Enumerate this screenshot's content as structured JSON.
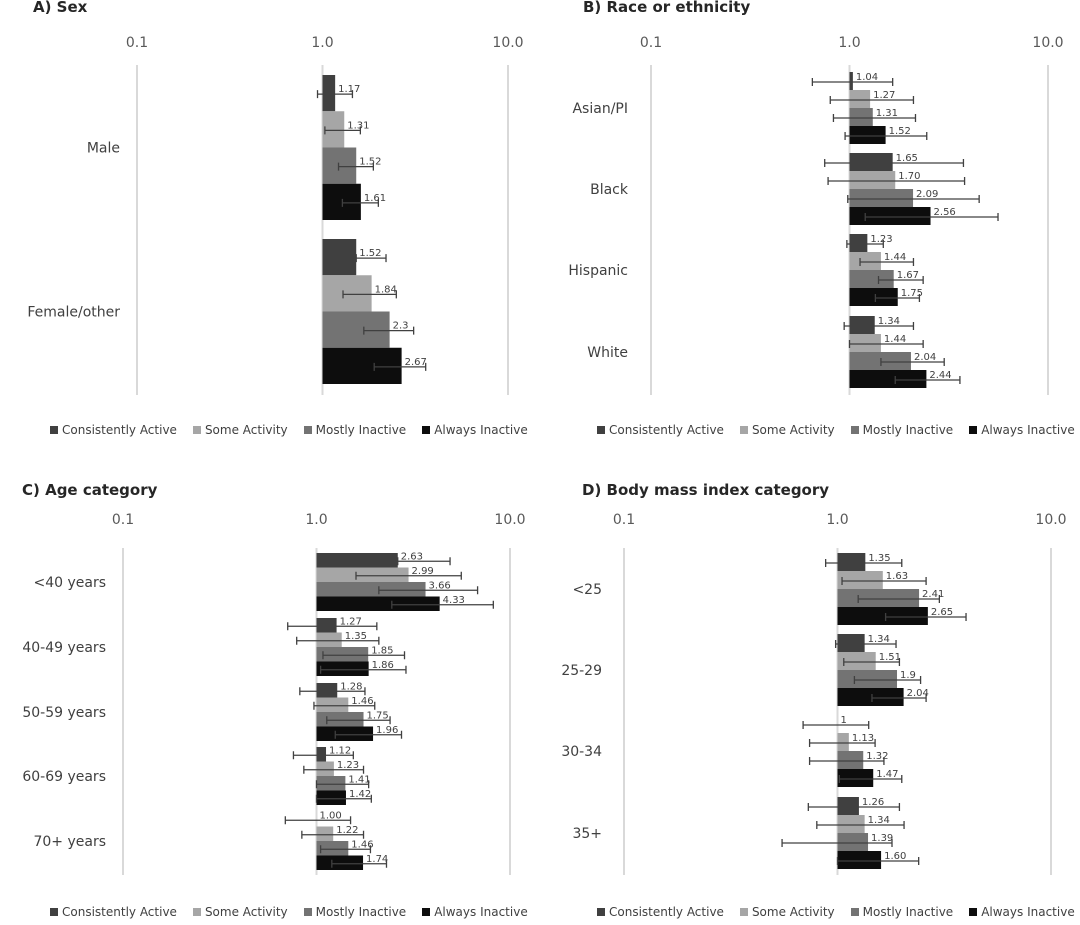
{
  "series_colors": {
    "Consistently Active": "#404040",
    "Some Activity": "#a6a6a6",
    "Mostly Inactive": "#737373",
    "Always Inactive": "#0d0d0d"
  },
  "legend": [
    "Consistently Active",
    "Some Activity",
    "Mostly Inactive",
    "Always Inactive"
  ],
  "chart_data": [
    {
      "id": "A",
      "type": "bar",
      "orientation": "horizontal",
      "title": "A) Sex",
      "xscale": "log",
      "xlim": [
        0.1,
        10.0
      ],
      "xticks": [
        "0.1",
        "1.0",
        "10.0"
      ],
      "grid": true,
      "legend_position": "bottom",
      "categories": [
        "Male",
        "Female/other"
      ],
      "series": [
        {
          "name": "Consistently Active",
          "values": [
            1.17,
            1.52
          ],
          "labels": [
            "1.17",
            "1.52"
          ],
          "ci_low": [
            0.94,
            1.52
          ],
          "ci_high": [
            1.45,
            2.2
          ]
        },
        {
          "name": "Some Activity",
          "values": [
            1.31,
            1.84
          ],
          "labels": [
            "1.31",
            "1.84"
          ],
          "ci_low": [
            1.03,
            1.29
          ],
          "ci_high": [
            1.6,
            2.5
          ]
        },
        {
          "name": "Mostly Inactive",
          "values": [
            1.52,
            2.3
          ],
          "labels": [
            "1.52",
            "2.3"
          ],
          "ci_low": [
            1.22,
            1.67
          ],
          "ci_high": [
            1.88,
            3.1
          ]
        },
        {
          "name": "Always Inactive",
          "values": [
            1.61,
            2.67
          ],
          "labels": [
            "1.61",
            "2.67"
          ],
          "ci_low": [
            1.28,
            1.9
          ],
          "ci_high": [
            2.0,
            3.6
          ]
        }
      ]
    },
    {
      "id": "B",
      "type": "bar",
      "orientation": "horizontal",
      "title": "B) Race or ethnicity",
      "xscale": "log",
      "xlim": [
        0.1,
        10.0
      ],
      "xticks": [
        "0.1",
        "1.0",
        "10.0"
      ],
      "grid": true,
      "legend_position": "bottom",
      "categories": [
        "Asian/PI",
        "Black",
        "Hispanic",
        "White"
      ],
      "series": [
        {
          "name": "Consistently Active",
          "values": [
            1.04,
            1.65,
            1.23,
            1.34
          ],
          "labels": [
            "1.04",
            "1.65",
            "1.23",
            "1.34"
          ],
          "ci_low": [
            0.65,
            0.75,
            0.97,
            0.94
          ],
          "ci_high": [
            1.65,
            3.75,
            1.48,
            2.1
          ]
        },
        {
          "name": "Some Activity",
          "values": [
            1.27,
            1.7,
            1.44,
            1.44
          ],
          "labels": [
            "1.27",
            "1.70",
            "1.44",
            "1.44"
          ],
          "ci_low": [
            0.8,
            0.78,
            1.13,
            1.0
          ],
          "ci_high": [
            2.1,
            3.8,
            2.1,
            2.35
          ]
        },
        {
          "name": "Mostly Inactive",
          "values": [
            1.31,
            2.09,
            1.67,
            2.04
          ],
          "labels": [
            "1.31",
            "2.09",
            "1.67",
            "2.04"
          ],
          "ci_low": [
            0.83,
            0.98,
            1.4,
            1.44
          ],
          "ci_high": [
            2.15,
            4.5,
            2.35,
            3.0
          ]
        },
        {
          "name": "Always Inactive",
          "values": [
            1.52,
            2.56,
            1.75,
            2.44
          ],
          "labels": [
            "1.52",
            "2.56",
            "1.75",
            "2.44"
          ],
          "ci_low": [
            0.95,
            1.2,
            1.35,
            1.7
          ],
          "ci_high": [
            2.45,
            5.6,
            2.25,
            3.6
          ]
        }
      ]
    },
    {
      "id": "C",
      "type": "bar",
      "orientation": "horizontal",
      "title": "C) Age category",
      "xscale": "log",
      "xlim": [
        0.1,
        10.0
      ],
      "xticks": [
        "0.1",
        "1.0",
        "10.0"
      ],
      "grid": true,
      "legend_position": "bottom",
      "categories": [
        "<40 years",
        "40-49 years",
        "50-59 years",
        "60-69 years",
        "70+ years"
      ],
      "series": [
        {
          "name": "Consistently Active",
          "values": [
            2.63,
            1.27,
            1.28,
            1.12,
            1.0
          ],
          "labels": [
            "2.63",
            "1.27",
            "1.28",
            "1.12",
            "1.00"
          ],
          "ci_low": [
            2.63,
            0.71,
            0.82,
            0.76,
            0.69
          ],
          "ci_high": [
            4.9,
            2.05,
            1.78,
            1.55,
            1.5
          ]
        },
        {
          "name": "Some Activity",
          "values": [
            2.99,
            1.35,
            1.46,
            1.23,
            1.22
          ],
          "labels": [
            "2.99",
            "1.35",
            "1.46",
            "1.23",
            "1.22"
          ],
          "ci_low": [
            1.6,
            0.79,
            0.97,
            0.86,
            0.84
          ],
          "ci_high": [
            5.6,
            2.1,
            2.0,
            1.75,
            1.75
          ]
        },
        {
          "name": "Mostly Inactive",
          "values": [
            3.66,
            1.85,
            1.75,
            1.41,
            1.46
          ],
          "labels": [
            "3.66",
            "1.85",
            "1.75",
            "1.41",
            "1.46"
          ],
          "ci_low": [
            2.1,
            1.08,
            1.13,
            1.0,
            1.05
          ],
          "ci_high": [
            6.8,
            2.85,
            2.4,
            1.86,
            1.9
          ]
        },
        {
          "name": "Always Inactive",
          "values": [
            4.33,
            1.86,
            1.96,
            1.42,
            1.74
          ],
          "labels": [
            "4.33",
            "1.86",
            "1.96",
            "1.42",
            "1.74"
          ],
          "ci_low": [
            2.45,
            1.05,
            1.25,
            1.0,
            1.2
          ],
          "ci_high": [
            8.2,
            2.9,
            2.75,
            1.92,
            2.3
          ]
        }
      ]
    },
    {
      "id": "D",
      "type": "bar",
      "orientation": "horizontal",
      "title": "D) Body mass index category",
      "xscale": "log",
      "xlim": [
        0.1,
        10.0
      ],
      "xticks": [
        "0.1",
        "1.0",
        "10.0"
      ],
      "grid": true,
      "legend_position": "bottom",
      "categories": [
        "<25",
        "25-29",
        "30-34",
        "35+"
      ],
      "series": [
        {
          "name": "Consistently Active",
          "values": [
            1.35,
            1.34,
            1.0,
            1.26
          ],
          "labels": [
            "1.35",
            "1.34",
            "1",
            "1.26"
          ],
          "ci_low": [
            0.88,
            0.98,
            0.69,
            0.73
          ],
          "ci_high": [
            2.0,
            1.88,
            1.4,
            1.95
          ]
        },
        {
          "name": "Some Activity",
          "values": [
            1.63,
            1.51,
            1.13,
            1.34
          ],
          "labels": [
            "1.63",
            "1.51",
            "1.13",
            "1.34"
          ],
          "ci_low": [
            1.05,
            1.07,
            0.74,
            0.8
          ],
          "ci_high": [
            2.6,
            1.95,
            1.5,
            2.05
          ]
        },
        {
          "name": "Mostly Inactive",
          "values": [
            2.41,
            1.9,
            1.32,
            1.39
          ],
          "labels": [
            "2.41",
            "1.9",
            "1.32",
            "1.39"
          ],
          "ci_low": [
            1.25,
            1.2,
            0.74,
            0.55
          ],
          "ci_high": [
            3.0,
            2.45,
            1.65,
            1.8
          ]
        },
        {
          "name": "Always Inactive",
          "values": [
            2.65,
            2.04,
            1.47,
            1.6
          ],
          "labels": [
            "2.65",
            "2.04",
            "1.47",
            "1.60"
          ],
          "ci_low": [
            1.68,
            1.45,
            1.02,
            1.0
          ],
          "ci_high": [
            4.0,
            2.6,
            2.0,
            2.4
          ]
        }
      ]
    }
  ]
}
